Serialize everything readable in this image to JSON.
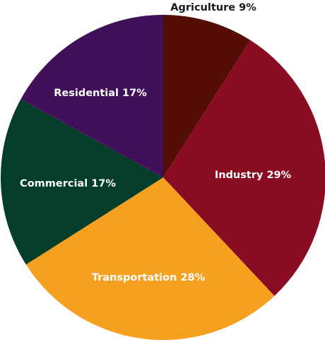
{
  "chart_data": {
    "type": "pie",
    "title": "",
    "legend": "none",
    "start_angle_deg": 0,
    "direction": "clockwise",
    "slices": [
      {
        "label": "Agriculture 9%",
        "name": "Agriculture",
        "value": 9,
        "color": "#540e05",
        "label_color": "#1a1a1a"
      },
      {
        "label": "Industry 29%",
        "name": "Industry",
        "value": 29,
        "color": "#890c22",
        "label_color": "#ffffff"
      },
      {
        "label": "Transportation 28%",
        "name": "Transportation",
        "value": 28,
        "color": "#f5a01f",
        "label_color": "#ffffff"
      },
      {
        "label": "Commercial 17%",
        "name": "Commercial",
        "value": 17,
        "color": "#053d2b",
        "label_color": "#ffffff"
      },
      {
        "label": "Residential 17%",
        "name": "Residential",
        "value": 17,
        "color": "#41105a",
        "label_color": "#ffffff"
      }
    ]
  }
}
